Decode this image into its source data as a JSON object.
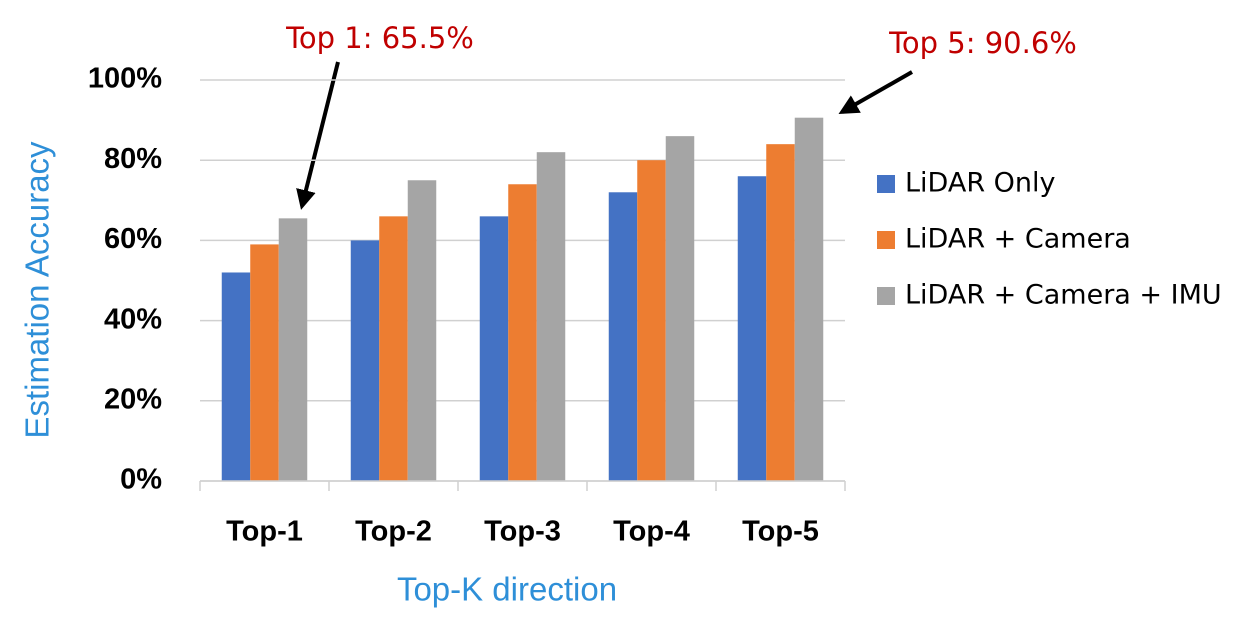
{
  "chart_data": {
    "type": "bar",
    "categories": [
      "Top-1",
      "Top-2",
      "Top-3",
      "Top-4",
      "Top-5"
    ],
    "series": [
      {
        "name": "LiDAR Only",
        "color": "#4472c4",
        "values": [
          52,
          60,
          66,
          72,
          76
        ]
      },
      {
        "name": "LiDAR + Camera",
        "color": "#ed7d31",
        "values": [
          59,
          66,
          74,
          80,
          84
        ]
      },
      {
        "name": "LiDAR + Camera + IMU",
        "color": "#a5a5a5",
        "values": [
          65.5,
          75,
          82,
          86,
          90.6
        ]
      }
    ],
    "ylim": [
      0,
      100
    ],
    "yticks": [
      {
        "value": 0,
        "label": "0%"
      },
      {
        "value": 20,
        "label": "20%"
      },
      {
        "value": 40,
        "label": "40%"
      },
      {
        "value": 60,
        "label": "60%"
      },
      {
        "value": 80,
        "label": "80%"
      },
      {
        "value": 100,
        "label": "100%"
      }
    ],
    "grid": true,
    "y_label": "Estimation Accuracy",
    "x_label": "Top-K direction",
    "annotations": [
      "Top 1: 65.5%",
      "Top 5: 90.6%"
    ],
    "legend": "right"
  }
}
